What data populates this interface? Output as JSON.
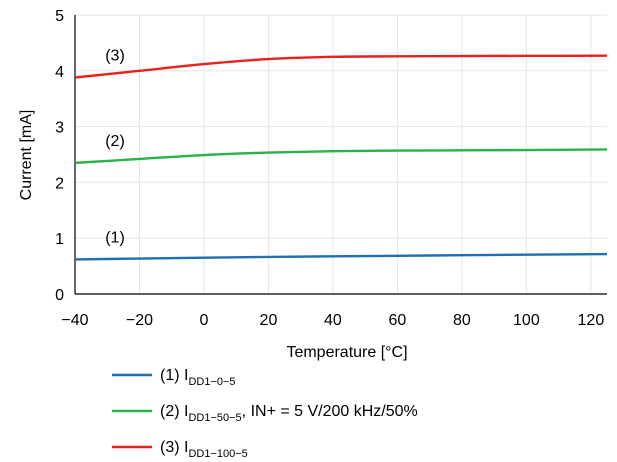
{
  "chart_data": {
    "type": "line",
    "xlabel": "Temperature [°C]",
    "ylabel": "Current [mA]",
    "xlim": [
      -40,
      125
    ],
    "ylim": [
      0,
      5
    ],
    "xticks": [
      "−40",
      "−20",
      "0",
      "20",
      "40",
      "60",
      "80",
      "100",
      "120"
    ],
    "xtick_values": [
      -40,
      -20,
      0,
      20,
      40,
      60,
      80,
      100,
      120
    ],
    "yticks": [
      "0",
      "1",
      "2",
      "3",
      "4",
      "5"
    ],
    "ytick_values": [
      0,
      1,
      2,
      3,
      4,
      5
    ],
    "grid": true,
    "series": [
      {
        "name": "(1) IDD1−0−5",
        "legend_prefix": "(1) I",
        "legend_sub": "DD1−0−5",
        "legend_suffix": "",
        "annotation": "(1)",
        "color": "#1f6fb4",
        "x": [
          -40,
          -20,
          0,
          20,
          40,
          60,
          80,
          100,
          125
        ],
        "y": [
          0.62,
          0.635,
          0.65,
          0.665,
          0.675,
          0.685,
          0.695,
          0.705,
          0.715
        ]
      },
      {
        "name": "(2) IDD1−50−5, IN+ = 5 V/200 kHz/50%",
        "legend_prefix": "(2) I",
        "legend_sub": "DD1−50−5",
        "legend_suffix": ", IN+ = 5 V/200 kHz/50%",
        "annotation": "(2)",
        "color": "#2ab24b",
        "x": [
          -40,
          -20,
          0,
          20,
          40,
          60,
          80,
          100,
          125
        ],
        "y": [
          2.35,
          2.42,
          2.49,
          2.535,
          2.56,
          2.57,
          2.575,
          2.58,
          2.59
        ]
      },
      {
        "name": "(3) IDD1−100−5",
        "legend_prefix": "(3) I",
        "legend_sub": "DD1−100−5",
        "legend_suffix": "",
        "annotation": "(3)",
        "color": "#e8211d",
        "x": [
          -40,
          -20,
          0,
          20,
          40,
          60,
          80,
          100,
          125
        ],
        "y": [
          3.88,
          4.0,
          4.12,
          4.21,
          4.25,
          4.26,
          4.265,
          4.268,
          4.27
        ]
      }
    ]
  }
}
